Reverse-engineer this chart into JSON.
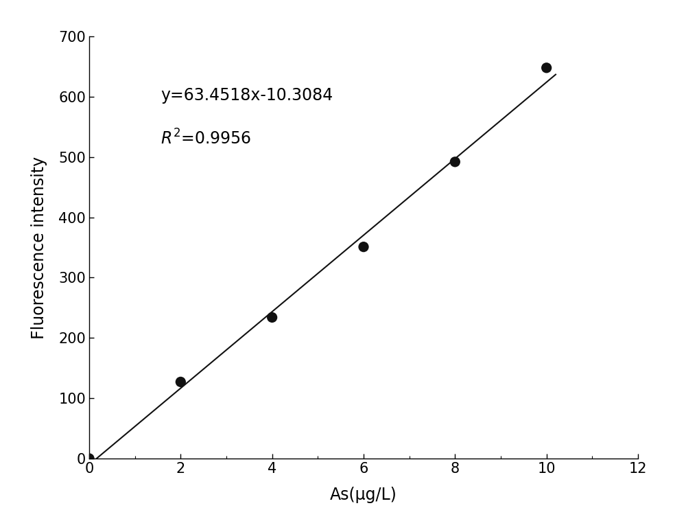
{
  "x_data": [
    0,
    2,
    4,
    6,
    8,
    10
  ],
  "y_data": [
    0,
    127,
    234,
    351,
    492,
    648
  ],
  "slope": 63.4518,
  "intercept": -10.3084,
  "r_squared": 0.9956,
  "equation_text": "y=63.4518x-10.3084",
  "xlabel": "As(μg/L)",
  "ylabel": "Fluorescence intensity",
  "xlim": [
    0,
    12
  ],
  "ylim": [
    0,
    700
  ],
  "xticks": [
    0,
    2,
    4,
    6,
    8,
    10,
    12
  ],
  "yticks": [
    0,
    100,
    200,
    300,
    400,
    500,
    600,
    700
  ],
  "marker_color": "#111111",
  "line_color": "#111111",
  "background_color": "#ffffff",
  "fontsize_annotation": 17,
  "fontsize_axis_label": 17,
  "fontsize_ticks": 15,
  "marker_size": 11
}
